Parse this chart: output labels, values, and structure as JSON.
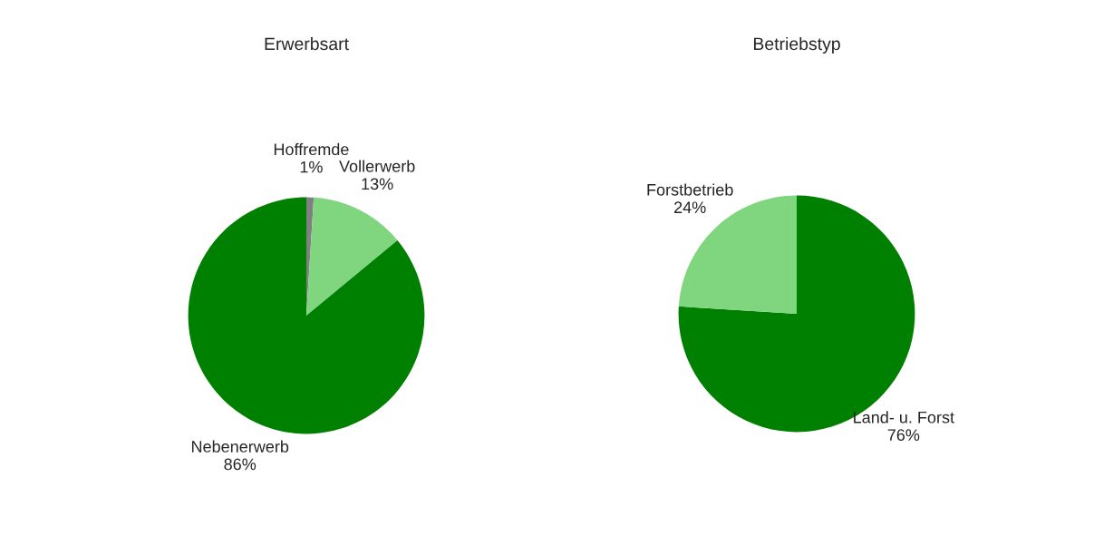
{
  "chart_data": [
    {
      "type": "pie",
      "title": "Erwerbsart",
      "categories": [
        "Hoffremde",
        "Vollerwerb",
        "Nebenerwerb"
      ],
      "values": [
        1,
        13,
        86
      ],
      "colors": [
        "#808080",
        "#7fd67f",
        "#008000"
      ],
      "value_labels": [
        "1%",
        "13%",
        "86%"
      ]
    },
    {
      "type": "pie",
      "title": "Betriebstyp",
      "categories": [
        "Land- u. Forst",
        "Forstbetrieb"
      ],
      "values": [
        76,
        24
      ],
      "colors": [
        "#008000",
        "#7fd67f"
      ],
      "value_labels": [
        "76%",
        "24%"
      ]
    }
  ]
}
